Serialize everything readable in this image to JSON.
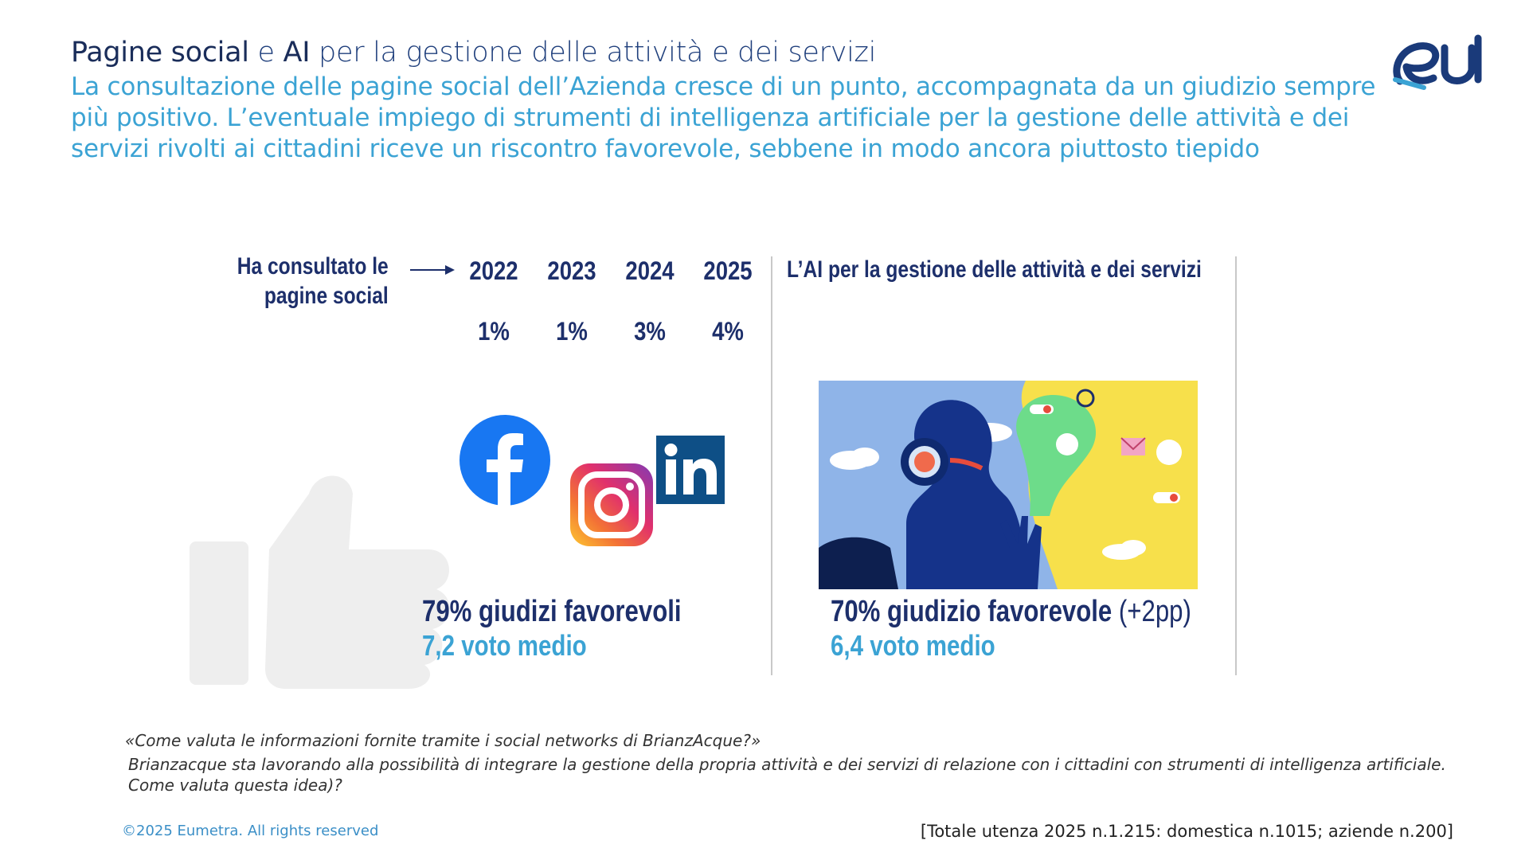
{
  "header": {
    "title_part1": "Pagine social",
    "title_part2": " e ",
    "title_part3": "AI",
    "title_part4": " per la gestione delle attività e dei servizi",
    "subtitle": "La consultazione delle pagine social dell’Azienda cresce di un punto, accompagnata da un giudizio sempre più positivo. L’eventuale impiego di strumenti di intelligenza artificiale per la gestione delle attività e dei servizi rivolti ai cittadini riceve un riscontro favorevole, sebbene in modo ancora piuttosto tiepido"
  },
  "logo": {
    "text": "eU",
    "icon": "eumetra-logo"
  },
  "social": {
    "label_line1": "Ha consultato le",
    "label_line2": "pagine  social",
    "years": [
      "2022",
      "2023",
      "2024",
      "2025"
    ],
    "percentages": [
      "1%",
      "1%",
      "3%",
      "4%"
    ],
    "icons": [
      "facebook-icon",
      "instagram-icon",
      "linkedin-icon",
      "thumbs-up-icon"
    ],
    "favorable": "79% giudizi favorevoli",
    "average": "7,2 voto medio"
  },
  "ai": {
    "heading": "L’AI per la gestione delle attività e dei servizi",
    "favorable": "70% giudizio favorevole",
    "delta": "(+2pp)",
    "average": "6,4 voto medio",
    "image": "ai-robot-illustration"
  },
  "footer": {
    "question1": "«Come valuta le informazioni fornite tramite i social networks di BrianzAcque?»",
    "question2": "Brianzacque sta lavorando alla possibilità di integrare la gestione della propria attività e dei servizi di relazione con i cittadini con strumenti di intelligenza artificiale. Come valuta questa idea)?",
    "copyright": "©2025 Eumetra. All rights reserved",
    "sample": "[Totale utenza 2025 n.1.215: domestica n.1015; aziende n.200]"
  },
  "colors": {
    "navy": "#1d2f6b",
    "light_blue": "#3ba3d4",
    "divider": "#c8c8c8"
  }
}
